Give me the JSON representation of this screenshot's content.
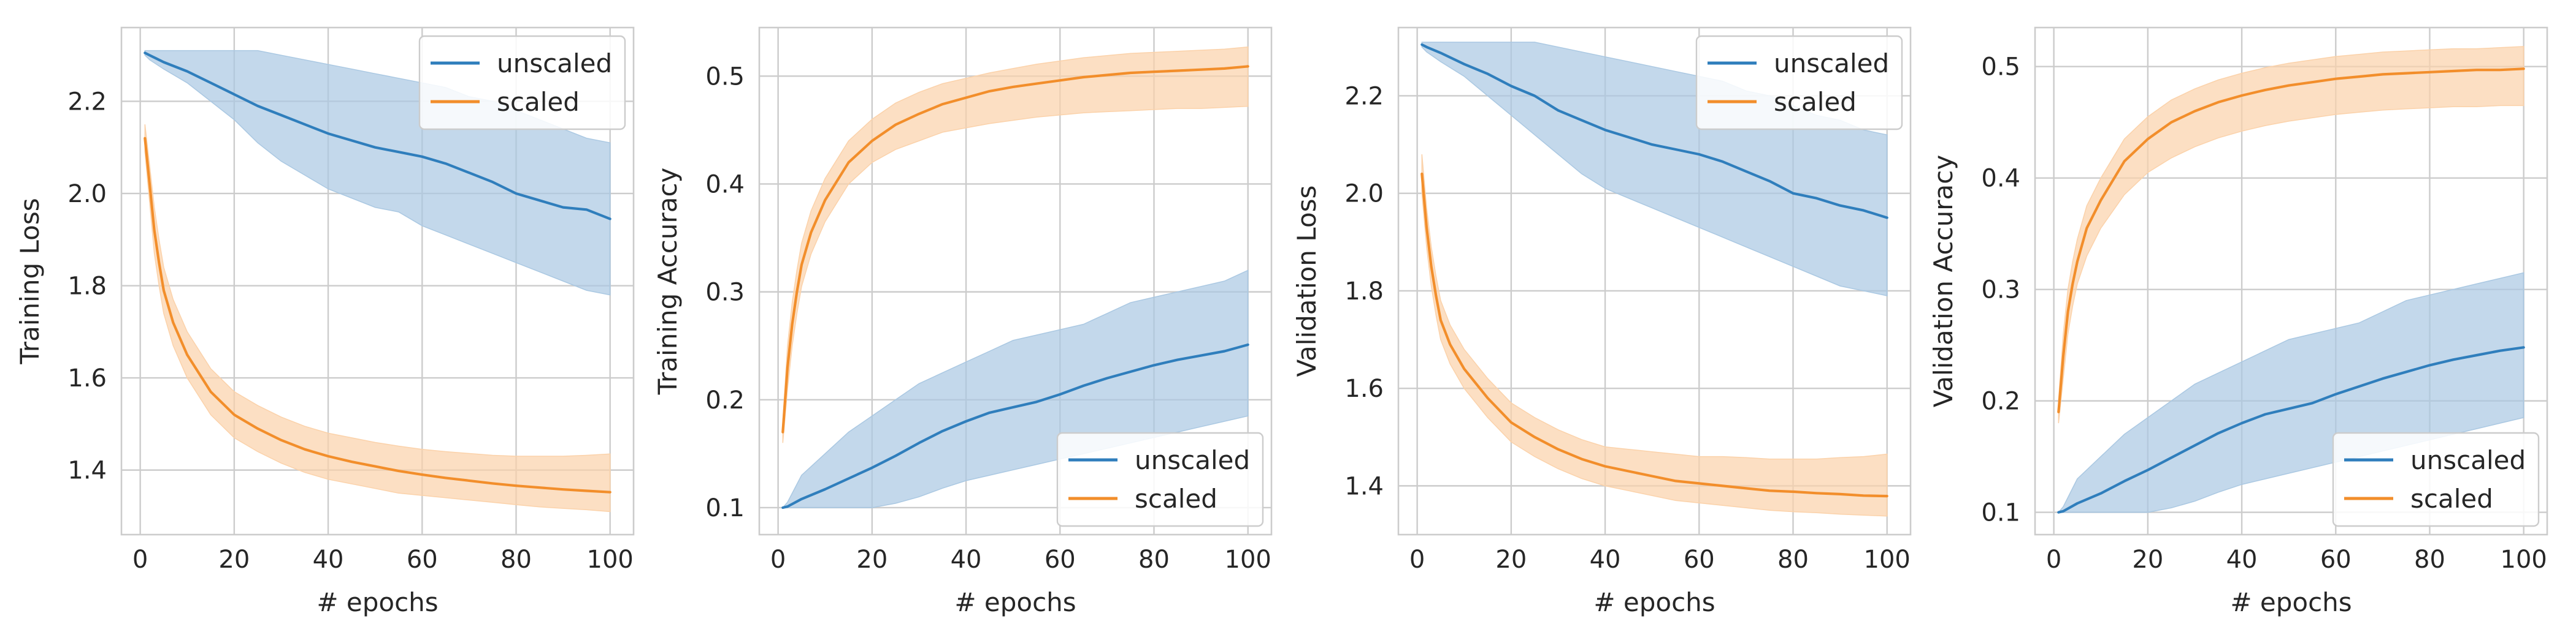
{
  "colors": {
    "unscaled": "#2f7ebc",
    "scaled": "#f28e2b",
    "unscaled_band": "#aac8e2",
    "scaled_band": "#fbd2aa",
    "grid": "#cccccc",
    "spine": "#cccccc"
  },
  "chart_data": [
    {
      "type": "line",
      "title": "",
      "xlabel": "# epochs",
      "ylabel": "Training Loss",
      "xlim": [
        -4,
        105
      ],
      "ylim": [
        1.26,
        2.36
      ],
      "xticks": [
        0,
        20,
        40,
        60,
        80,
        100
      ],
      "yticks": [
        1.4,
        1.6,
        1.8,
        2.0,
        2.2
      ],
      "xtick_labels": [
        "0",
        "20",
        "40",
        "60",
        "80",
        "100"
      ],
      "ytick_labels": [
        "1.4",
        "1.6",
        "1.8",
        "2.0",
        "2.2"
      ],
      "legend": {
        "loc": "upper right",
        "labels": [
          "unscaled",
          "scaled"
        ]
      },
      "series": [
        {
          "name": "unscaled",
          "x": [
            1,
            2,
            5,
            10,
            15,
            20,
            25,
            30,
            35,
            40,
            45,
            50,
            55,
            60,
            65,
            70,
            75,
            80,
            85,
            90,
            95,
            100
          ],
          "mean": [
            2.305,
            2.3,
            2.285,
            2.265,
            2.24,
            2.215,
            2.19,
            2.17,
            2.15,
            2.13,
            2.115,
            2.1,
            2.09,
            2.08,
            2.065,
            2.045,
            2.025,
            2.0,
            1.985,
            1.97,
            1.965,
            1.945
          ],
          "lower": [
            2.3,
            2.29,
            2.27,
            2.24,
            2.2,
            2.16,
            2.11,
            2.07,
            2.04,
            2.01,
            1.99,
            1.97,
            1.96,
            1.93,
            1.91,
            1.89,
            1.87,
            1.85,
            1.83,
            1.81,
            1.79,
            1.78
          ],
          "upper": [
            2.31,
            2.31,
            2.31,
            2.31,
            2.31,
            2.31,
            2.31,
            2.3,
            2.29,
            2.28,
            2.27,
            2.26,
            2.25,
            2.24,
            2.23,
            2.21,
            2.2,
            2.18,
            2.16,
            2.14,
            2.12,
            2.11
          ]
        },
        {
          "name": "scaled",
          "x": [
            1,
            2,
            3,
            4,
            5,
            7,
            10,
            15,
            20,
            25,
            30,
            35,
            40,
            45,
            50,
            55,
            60,
            65,
            70,
            75,
            80,
            85,
            90,
            95,
            100
          ],
          "mean": [
            2.12,
            2.02,
            1.92,
            1.85,
            1.79,
            1.72,
            1.65,
            1.57,
            1.52,
            1.49,
            1.465,
            1.445,
            1.43,
            1.418,
            1.408,
            1.398,
            1.39,
            1.383,
            1.377,
            1.371,
            1.366,
            1.362,
            1.358,
            1.355,
            1.352
          ],
          "lower": [
            2.09,
            1.98,
            1.87,
            1.8,
            1.74,
            1.67,
            1.6,
            1.52,
            1.47,
            1.44,
            1.415,
            1.395,
            1.38,
            1.37,
            1.36,
            1.35,
            1.345,
            1.34,
            1.335,
            1.33,
            1.325,
            1.32,
            1.317,
            1.314,
            1.31
          ],
          "upper": [
            2.15,
            2.06,
            1.97,
            1.9,
            1.84,
            1.77,
            1.7,
            1.62,
            1.57,
            1.54,
            1.515,
            1.495,
            1.48,
            1.47,
            1.46,
            1.452,
            1.445,
            1.44,
            1.436,
            1.432,
            1.43,
            1.43,
            1.43,
            1.432,
            1.435
          ]
        }
      ]
    },
    {
      "type": "line",
      "title": "",
      "xlabel": "# epochs",
      "ylabel": "Training Accuracy",
      "xlim": [
        -4,
        105
      ],
      "ylim": [
        0.075,
        0.545
      ],
      "xticks": [
        0,
        20,
        40,
        60,
        80,
        100
      ],
      "yticks": [
        0.1,
        0.2,
        0.3,
        0.4,
        0.5
      ],
      "xtick_labels": [
        "0",
        "20",
        "40",
        "60",
        "80",
        "100"
      ],
      "ytick_labels": [
        "0.1",
        "0.2",
        "0.3",
        "0.4",
        "0.5"
      ],
      "legend": {
        "loc": "lower right",
        "labels": [
          "unscaled",
          "scaled"
        ]
      },
      "series": [
        {
          "name": "unscaled",
          "x": [
            1,
            2,
            5,
            10,
            15,
            20,
            25,
            30,
            35,
            40,
            45,
            50,
            55,
            60,
            65,
            70,
            75,
            80,
            85,
            90,
            95,
            100
          ],
          "mean": [
            0.1,
            0.101,
            0.108,
            0.117,
            0.127,
            0.137,
            0.148,
            0.16,
            0.171,
            0.18,
            0.188,
            0.193,
            0.198,
            0.205,
            0.213,
            0.22,
            0.226,
            0.232,
            0.237,
            0.241,
            0.245,
            0.251
          ],
          "lower": [
            0.1,
            0.1,
            0.1,
            0.1,
            0.1,
            0.1,
            0.104,
            0.11,
            0.118,
            0.125,
            0.13,
            0.135,
            0.14,
            0.145,
            0.15,
            0.155,
            0.16,
            0.165,
            0.17,
            0.175,
            0.18,
            0.185
          ],
          "upper": [
            0.1,
            0.105,
            0.13,
            0.15,
            0.17,
            0.185,
            0.2,
            0.215,
            0.225,
            0.235,
            0.245,
            0.255,
            0.26,
            0.265,
            0.27,
            0.28,
            0.29,
            0.295,
            0.3,
            0.305,
            0.31,
            0.32
          ]
        },
        {
          "name": "scaled",
          "x": [
            1,
            2,
            3,
            4,
            5,
            7,
            10,
            15,
            20,
            25,
            30,
            35,
            40,
            45,
            50,
            55,
            60,
            65,
            70,
            75,
            80,
            85,
            90,
            95,
            100
          ],
          "mean": [
            0.17,
            0.23,
            0.27,
            0.3,
            0.325,
            0.355,
            0.385,
            0.42,
            0.44,
            0.455,
            0.465,
            0.474,
            0.48,
            0.486,
            0.49,
            0.493,
            0.496,
            0.499,
            0.501,
            0.503,
            0.504,
            0.505,
            0.506,
            0.507,
            0.509
          ],
          "lower": [
            0.16,
            0.21,
            0.25,
            0.28,
            0.305,
            0.335,
            0.365,
            0.4,
            0.42,
            0.432,
            0.44,
            0.448,
            0.452,
            0.456,
            0.459,
            0.462,
            0.464,
            0.466,
            0.467,
            0.468,
            0.469,
            0.47,
            0.47,
            0.471,
            0.472
          ],
          "upper": [
            0.18,
            0.25,
            0.29,
            0.32,
            0.345,
            0.375,
            0.405,
            0.44,
            0.46,
            0.475,
            0.485,
            0.493,
            0.498,
            0.503,
            0.507,
            0.511,
            0.514,
            0.517,
            0.519,
            0.521,
            0.522,
            0.523,
            0.524,
            0.525,
            0.527
          ]
        }
      ]
    },
    {
      "type": "line",
      "title": "",
      "xlabel": "# epochs",
      "ylabel": "Validation Loss",
      "xlim": [
        -4,
        105
      ],
      "ylim": [
        1.3,
        2.34
      ],
      "xticks": [
        0,
        20,
        40,
        60,
        80,
        100
      ],
      "yticks": [
        1.4,
        1.6,
        1.8,
        2.0,
        2.2
      ],
      "xtick_labels": [
        "0",
        "20",
        "40",
        "60",
        "80",
        "100"
      ],
      "ytick_labels": [
        "1.4",
        "1.6",
        "1.8",
        "2.0",
        "2.2"
      ],
      "legend": {
        "loc": "upper right",
        "labels": [
          "unscaled",
          "scaled"
        ]
      },
      "series": [
        {
          "name": "unscaled",
          "x": [
            1,
            2,
            5,
            10,
            15,
            20,
            25,
            30,
            35,
            40,
            45,
            50,
            55,
            60,
            65,
            70,
            75,
            80,
            85,
            90,
            95,
            100
          ],
          "mean": [
            2.305,
            2.3,
            2.288,
            2.265,
            2.245,
            2.22,
            2.2,
            2.17,
            2.15,
            2.13,
            2.115,
            2.1,
            2.09,
            2.08,
            2.065,
            2.045,
            2.025,
            2.0,
            1.99,
            1.975,
            1.965,
            1.95
          ],
          "lower": [
            2.3,
            2.29,
            2.27,
            2.24,
            2.2,
            2.16,
            2.12,
            2.08,
            2.04,
            2.01,
            1.99,
            1.97,
            1.95,
            1.93,
            1.91,
            1.89,
            1.87,
            1.85,
            1.83,
            1.81,
            1.8,
            1.79
          ],
          "upper": [
            2.31,
            2.31,
            2.31,
            2.31,
            2.31,
            2.31,
            2.31,
            2.3,
            2.29,
            2.28,
            2.27,
            2.26,
            2.25,
            2.24,
            2.23,
            2.21,
            2.2,
            2.18,
            2.16,
            2.15,
            2.13,
            2.12
          ]
        },
        {
          "name": "scaled",
          "x": [
            1,
            2,
            3,
            4,
            5,
            7,
            10,
            15,
            20,
            25,
            30,
            35,
            40,
            45,
            50,
            55,
            60,
            65,
            70,
            75,
            80,
            85,
            90,
            95,
            100
          ],
          "mean": [
            2.04,
            1.93,
            1.85,
            1.79,
            1.74,
            1.69,
            1.64,
            1.58,
            1.53,
            1.5,
            1.475,
            1.455,
            1.44,
            1.43,
            1.42,
            1.41,
            1.405,
            1.4,
            1.395,
            1.39,
            1.388,
            1.385,
            1.383,
            1.38,
            1.379
          ],
          "lower": [
            2.0,
            1.89,
            1.81,
            1.75,
            1.7,
            1.65,
            1.6,
            1.54,
            1.49,
            1.46,
            1.435,
            1.415,
            1.4,
            1.39,
            1.38,
            1.37,
            1.365,
            1.36,
            1.355,
            1.35,
            1.347,
            1.345,
            1.342,
            1.34,
            1.338
          ],
          "upper": [
            2.08,
            1.97,
            1.89,
            1.83,
            1.78,
            1.73,
            1.68,
            1.62,
            1.57,
            1.54,
            1.515,
            1.495,
            1.48,
            1.475,
            1.47,
            1.465,
            1.46,
            1.46,
            1.458,
            1.455,
            1.455,
            1.455,
            1.458,
            1.46,
            1.465
          ]
        }
      ]
    },
    {
      "type": "line",
      "title": "",
      "xlabel": "# epochs",
      "ylabel": "Validation Accuracy",
      "xlim": [
        -4,
        105
      ],
      "ylim": [
        0.08,
        0.535
      ],
      "xticks": [
        0,
        20,
        40,
        60,
        80,
        100
      ],
      "yticks": [
        0.1,
        0.2,
        0.3,
        0.4,
        0.5
      ],
      "xtick_labels": [
        "0",
        "20",
        "40",
        "60",
        "80",
        "100"
      ],
      "ytick_labels": [
        "0.1",
        "0.2",
        "0.3",
        "0.4",
        "0.5"
      ],
      "legend": {
        "loc": "lower right",
        "labels": [
          "unscaled",
          "scaled"
        ]
      },
      "series": [
        {
          "name": "unscaled",
          "x": [
            1,
            2,
            5,
            10,
            15,
            20,
            25,
            30,
            35,
            40,
            45,
            50,
            55,
            60,
            65,
            70,
            75,
            80,
            85,
            90,
            95,
            100
          ],
          "mean": [
            0.1,
            0.101,
            0.108,
            0.117,
            0.128,
            0.138,
            0.149,
            0.16,
            0.171,
            0.18,
            0.188,
            0.193,
            0.198,
            0.206,
            0.213,
            0.22,
            0.226,
            0.232,
            0.237,
            0.241,
            0.245,
            0.248
          ],
          "lower": [
            0.1,
            0.1,
            0.1,
            0.1,
            0.1,
            0.1,
            0.104,
            0.11,
            0.118,
            0.125,
            0.13,
            0.135,
            0.14,
            0.145,
            0.15,
            0.155,
            0.16,
            0.165,
            0.17,
            0.175,
            0.18,
            0.185
          ],
          "upper": [
            0.1,
            0.105,
            0.13,
            0.15,
            0.17,
            0.185,
            0.2,
            0.215,
            0.225,
            0.235,
            0.245,
            0.255,
            0.26,
            0.265,
            0.27,
            0.28,
            0.29,
            0.295,
            0.3,
            0.305,
            0.31,
            0.315
          ]
        },
        {
          "name": "scaled",
          "x": [
            1,
            2,
            3,
            4,
            5,
            7,
            10,
            15,
            20,
            25,
            30,
            35,
            40,
            45,
            50,
            55,
            60,
            65,
            70,
            75,
            80,
            85,
            90,
            95,
            100
          ],
          "mean": [
            0.19,
            0.24,
            0.28,
            0.305,
            0.325,
            0.355,
            0.38,
            0.415,
            0.435,
            0.45,
            0.46,
            0.468,
            0.474,
            0.479,
            0.483,
            0.486,
            0.489,
            0.491,
            0.493,
            0.494,
            0.495,
            0.496,
            0.497,
            0.497,
            0.498
          ],
          "lower": [
            0.18,
            0.22,
            0.26,
            0.285,
            0.305,
            0.33,
            0.355,
            0.385,
            0.405,
            0.418,
            0.428,
            0.436,
            0.442,
            0.447,
            0.451,
            0.454,
            0.457,
            0.459,
            0.461,
            0.462,
            0.463,
            0.464,
            0.464,
            0.465,
            0.465
          ],
          "upper": [
            0.2,
            0.26,
            0.3,
            0.325,
            0.345,
            0.375,
            0.4,
            0.435,
            0.455,
            0.47,
            0.48,
            0.488,
            0.494,
            0.499,
            0.503,
            0.506,
            0.509,
            0.511,
            0.513,
            0.514,
            0.515,
            0.516,
            0.516,
            0.517,
            0.518
          ]
        }
      ]
    }
  ]
}
